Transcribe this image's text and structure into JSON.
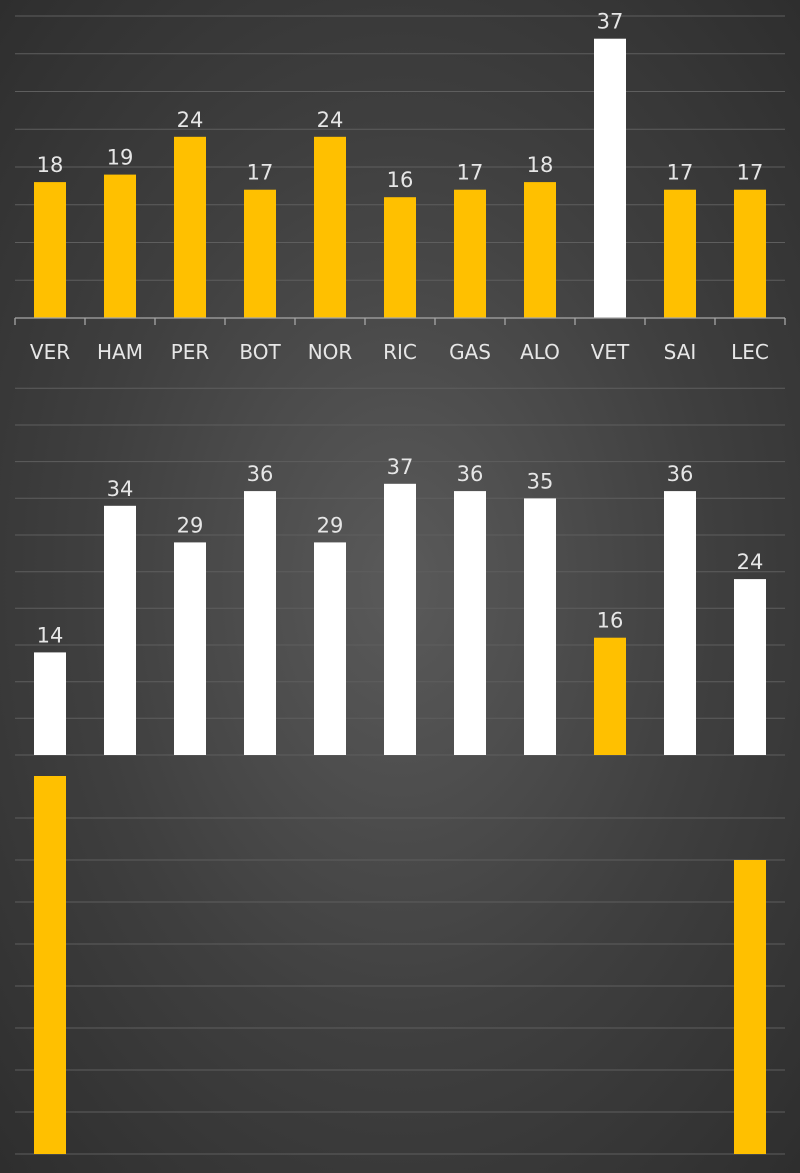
{
  "colors": {
    "highlight": "#FFC000",
    "neutral": "#FFFFFF",
    "label": "#E6E6E6",
    "grid": "#5E5E5E",
    "axis": "#A6A6A6"
  },
  "chart_data": [
    {
      "type": "bar",
      "categories": [
        "VER",
        "HAM",
        "PER",
        "BOT",
        "NOR",
        "RIC",
        "GAS",
        "ALO",
        "VET",
        "SAI",
        "LEC"
      ],
      "values": [
        18,
        19,
        24,
        17,
        24,
        16,
        17,
        18,
        37,
        17,
        17
      ],
      "bar_colors": [
        "#FFC000",
        "#FFC000",
        "#FFC000",
        "#FFC000",
        "#FFC000",
        "#FFC000",
        "#FFC000",
        "#FFC000",
        "#FFFFFF",
        "#FFC000",
        "#FFC000"
      ],
      "ylim": [
        0,
        40
      ],
      "grid": true,
      "data_labels": true
    },
    {
      "type": "bar",
      "categories": [
        "VER",
        "HAM",
        "PER",
        "BOT",
        "NOR",
        "RIC",
        "GAS",
        "ALO",
        "VET",
        "SAI",
        "LEC"
      ],
      "values": [
        14,
        34,
        29,
        36,
        29,
        37,
        36,
        35,
        16,
        36,
        24
      ],
      "bar_colors": [
        "#FFFFFF",
        "#FFFFFF",
        "#FFFFFF",
        "#FFFFFF",
        "#FFFFFF",
        "#FFFFFF",
        "#FFFFFF",
        "#FFFFFF",
        "#FFC000",
        "#FFFFFF",
        "#FFFFFF"
      ],
      "grid": true,
      "data_labels": true
    },
    {
      "type": "bar",
      "categories": [
        "VER",
        "HAM",
        "PER",
        "BOT",
        "NOR",
        "RIC",
        "GAS",
        "ALO",
        "VET",
        "SAI",
        "LEC"
      ],
      "values": [
        9,
        null,
        null,
        null,
        null,
        null,
        null,
        null,
        null,
        null,
        7
      ],
      "bar_colors": [
        "#FFC000",
        "#FFC000",
        "#FFC000",
        "#FFC000",
        "#FFC000",
        "#FFC000",
        "#FFC000",
        "#FFC000",
        "#FFC000",
        "#FFC000",
        "#FFC000"
      ],
      "grid": true,
      "data_labels": false,
      "inverted": true
    }
  ]
}
